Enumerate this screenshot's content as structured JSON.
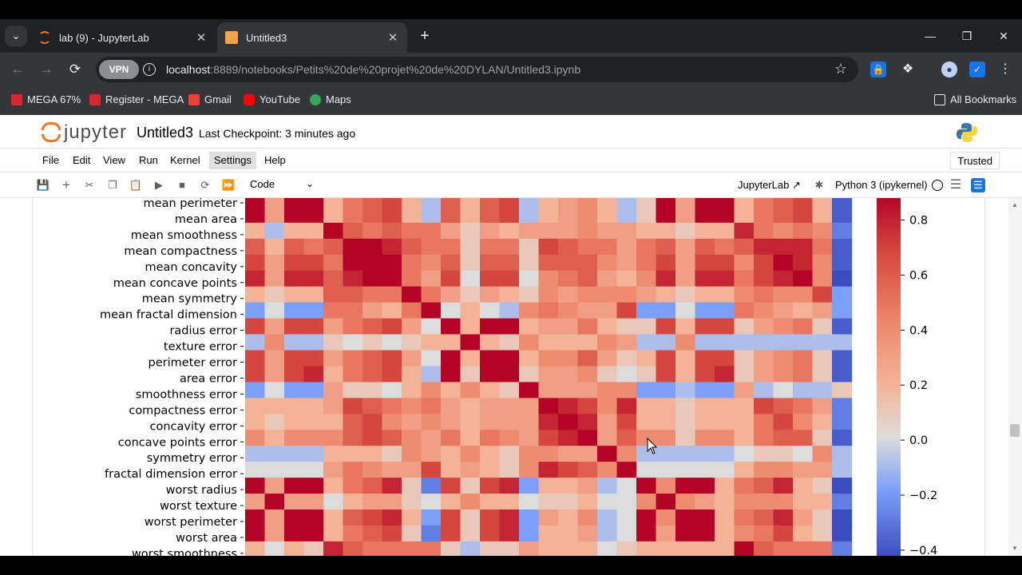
{
  "browser": {
    "tabs": [
      {
        "title": "lab (9) - JupyterLab",
        "active": false
      },
      {
        "title": "Untitled3",
        "active": true
      }
    ],
    "url_host": "localhost",
    "url_rest": ":8889/notebooks/Petits%20de%20projet%20de%20DYLAN/Untitled3.ipynb",
    "vpn_label": "VPN",
    "bookmarks": [
      "MEGA 67%",
      "Register - MEGA",
      "Gmail",
      "YouTube",
      "Maps"
    ],
    "all_bookmarks": "All Bookmarks"
  },
  "jupyter": {
    "logo_text": "jupyter",
    "notebook_name": "Untitled3",
    "checkpoint": "Last Checkpoint: 3 minutes ago",
    "menu": [
      "File",
      "Edit",
      "View",
      "Run",
      "Kernel",
      "Settings",
      "Help"
    ],
    "highlighted_menu": "Settings",
    "trusted": "Trusted",
    "cell_type": "Code",
    "jupyterlab_link": "JupyterLab",
    "kernel": "Python 3 (ipykernel)"
  },
  "chart_data": {
    "type": "heatmap",
    "rows": [
      "mean perimeter",
      "mean area",
      "mean smoothness",
      "mean compactness",
      "mean concavity",
      "mean concave points",
      "mean symmetry",
      "mean fractal dimension",
      "radius error",
      "texture error",
      "perimeter error",
      "area error",
      "smoothness error",
      "compactness error",
      "concavity error",
      "concave points error",
      "symmetry error",
      "fractal dimension error",
      "worst radius",
      "worst texture",
      "worst perimeter",
      "worst area",
      "worst smoothness"
    ],
    "n_columns": 31,
    "colorscale": "coolwarm",
    "clim": [
      -0.45,
      0.9
    ],
    "colorbar_ticks": [
      "0.8",
      "0.6",
      "0.4",
      "0.2",
      "0.0",
      "−0.2",
      "−0.4"
    ],
    "colorbar_values": [
      0.8,
      0.6,
      0.4,
      0.2,
      0.0,
      -0.2,
      -0.4
    ],
    "matrix": [
      [
        0.9,
        0.3,
        0.9,
        0.9,
        0.2,
        0.5,
        0.6,
        0.7,
        0.2,
        -0.1,
        0.6,
        0.2,
        0.6,
        0.7,
        -0.1,
        0.2,
        0.3,
        0.4,
        0.2,
        -0.1,
        0.1,
        0.9,
        0.3,
        0.9,
        0.9,
        0.2,
        0.5,
        0.6,
        0.7,
        0.2,
        -0.4
      ],
      [
        0.9,
        0.3,
        0.9,
        0.9,
        0.2,
        0.5,
        0.6,
        0.7,
        0.2,
        -0.1,
        0.6,
        0.2,
        0.6,
        0.7,
        -0.1,
        0.2,
        0.3,
        0.4,
        0.2,
        -0.1,
        0.1,
        0.9,
        0.3,
        0.9,
        0.9,
        0.2,
        0.5,
        0.6,
        0.7,
        0.2,
        -0.4
      ],
      [
        0.2,
        -0.1,
        0.2,
        0.2,
        0.9,
        0.6,
        0.5,
        0.6,
        0.5,
        0.5,
        0.3,
        0.1,
        0.3,
        0.2,
        0.3,
        0.3,
        0.3,
        0.4,
        0.3,
        0.3,
        0.2,
        0.2,
        0.1,
        0.2,
        0.2,
        0.8,
        0.5,
        0.4,
        0.5,
        0.4,
        -0.3
      ],
      [
        0.6,
        0.2,
        0.6,
        0.5,
        0.6,
        0.9,
        0.9,
        0.8,
        0.6,
        0.5,
        0.5,
        0.1,
        0.5,
        0.5,
        0.1,
        0.7,
        0.6,
        0.5,
        0.5,
        0.3,
        0.5,
        0.6,
        0.3,
        0.6,
        0.5,
        0.6,
        0.8,
        0.8,
        0.8,
        0.5,
        -0.4
      ],
      [
        0.7,
        0.3,
        0.7,
        0.7,
        0.5,
        0.9,
        0.9,
        0.9,
        0.5,
        0.4,
        0.6,
        0.1,
        0.6,
        0.6,
        0.1,
        0.6,
        0.6,
        0.6,
        0.4,
        0.3,
        0.5,
        0.7,
        0.3,
        0.7,
        0.7,
        0.4,
        0.7,
        0.9,
        0.8,
        0.4,
        -0.4
      ],
      [
        0.8,
        0.3,
        0.8,
        0.8,
        0.6,
        0.8,
        0.9,
        0.9,
        0.5,
        0.3,
        0.7,
        0.0,
        0.7,
        0.7,
        0.0,
        0.4,
        0.5,
        0.6,
        0.3,
        0.2,
        0.4,
        0.8,
        0.3,
        0.8,
        0.8,
        0.5,
        0.7,
        0.8,
        0.9,
        0.4,
        -0.5
      ],
      [
        0.2,
        0.1,
        0.2,
        0.2,
        0.6,
        0.6,
        0.5,
        0.5,
        0.9,
        0.5,
        0.3,
        0.1,
        0.3,
        0.2,
        0.1,
        0.4,
        0.3,
        0.4,
        0.4,
        0.4,
        0.3,
        0.2,
        0.1,
        0.2,
        0.2,
        0.4,
        0.5,
        0.4,
        0.4,
        0.7,
        -0.2
      ],
      [
        -0.2,
        0.0,
        -0.2,
        -0.2,
        0.5,
        0.5,
        0.3,
        0.2,
        0.5,
        0.9,
        0.0,
        0.2,
        0.0,
        -0.1,
        0.4,
        0.5,
        0.4,
        0.3,
        0.3,
        0.7,
        -0.2,
        -0.2,
        0.0,
        -0.2,
        -0.2,
        0.5,
        0.4,
        0.3,
        0.2,
        0.3,
        -0.2
      ],
      [
        0.7,
        0.3,
        0.7,
        0.7,
        0.3,
        0.5,
        0.6,
        0.7,
        0.3,
        0.0,
        0.9,
        0.2,
        0.9,
        0.9,
        0.2,
        0.3,
        0.3,
        0.5,
        0.2,
        0.1,
        0.1,
        0.7,
        0.2,
        0.7,
        0.7,
        0.1,
        0.3,
        0.4,
        0.5,
        0.1,
        -0.4
      ],
      [
        -0.1,
        0.4,
        -0.1,
        -0.1,
        0.1,
        0.0,
        0.1,
        0.0,
        0.1,
        0.2,
        0.2,
        0.9,
        0.2,
        0.1,
        0.4,
        0.2,
        0.2,
        0.2,
        0.4,
        0.3,
        -0.1,
        -0.1,
        0.4,
        -0.1,
        -0.1,
        -0.1,
        -0.1,
        -0.1,
        -0.1,
        -0.1,
        -0.1
      ],
      [
        0.7,
        0.3,
        0.7,
        0.7,
        0.3,
        0.5,
        0.6,
        0.7,
        0.3,
        0.0,
        0.9,
        0.2,
        0.9,
        0.9,
        0.2,
        0.4,
        0.4,
        0.6,
        0.3,
        0.1,
        0.2,
        0.7,
        0.2,
        0.7,
        0.7,
        0.1,
        0.3,
        0.4,
        0.5,
        0.1,
        -0.4
      ],
      [
        0.7,
        0.3,
        0.7,
        0.8,
        0.2,
        0.5,
        0.6,
        0.7,
        0.2,
        -0.1,
        0.9,
        0.1,
        0.9,
        0.9,
        0.1,
        0.3,
        0.3,
        0.4,
        0.1,
        0.0,
        0.1,
        0.7,
        0.2,
        0.7,
        0.8,
        0.1,
        0.3,
        0.4,
        0.5,
        0.1,
        -0.4
      ],
      [
        -0.2,
        0.0,
        -0.2,
        -0.2,
        0.3,
        0.1,
        0.1,
        0.0,
        0.2,
        0.4,
        0.2,
        0.4,
        0.2,
        0.1,
        0.9,
        0.3,
        0.3,
        0.3,
        0.4,
        0.4,
        -0.2,
        -0.2,
        -0.1,
        -0.2,
        -0.2,
        0.3,
        -0.1,
        0.0,
        -0.1,
        -0.1,
        0.1
      ],
      [
        0.2,
        0.2,
        0.2,
        0.2,
        0.3,
        0.7,
        0.6,
        0.5,
        0.4,
        0.5,
        0.3,
        0.2,
        0.3,
        0.3,
        0.3,
        0.9,
        0.8,
        0.7,
        0.4,
        0.8,
        0.2,
        0.2,
        0.1,
        0.2,
        0.2,
        0.2,
        0.7,
        0.6,
        0.5,
        0.3,
        -0.3
      ],
      [
        0.2,
        0.1,
        0.2,
        0.2,
        0.2,
        0.6,
        0.7,
        0.4,
        0.3,
        0.4,
        0.3,
        0.2,
        0.3,
        0.3,
        0.3,
        0.8,
        0.9,
        0.8,
        0.3,
        0.7,
        0.2,
        0.2,
        0.1,
        0.2,
        0.2,
        0.2,
        0.5,
        0.7,
        0.4,
        0.2,
        -0.3
      ],
      [
        0.4,
        0.2,
        0.4,
        0.4,
        0.4,
        0.6,
        0.7,
        0.6,
        0.4,
        0.3,
        0.5,
        0.2,
        0.5,
        0.4,
        0.3,
        0.7,
        0.8,
        0.9,
        0.3,
        0.6,
        0.4,
        0.4,
        0.1,
        0.4,
        0.4,
        0.2,
        0.5,
        0.6,
        0.6,
        0.1,
        -0.4
      ],
      [
        -0.1,
        -0.1,
        -0.1,
        -0.1,
        0.2,
        0.2,
        0.2,
        0.1,
        0.4,
        0.3,
        0.2,
        0.4,
        0.2,
        0.1,
        0.4,
        0.4,
        0.3,
        0.3,
        0.9,
        0.4,
        -0.1,
        -0.1,
        -0.1,
        -0.1,
        -0.1,
        0.0,
        0.1,
        0.1,
        0.0,
        0.4,
        -0.1
      ],
      [
        0.0,
        0.0,
        0.0,
        0.0,
        0.3,
        0.5,
        0.4,
        0.3,
        0.3,
        0.7,
        0.2,
        0.3,
        0.2,
        0.1,
        0.4,
        0.8,
        0.7,
        0.6,
        0.4,
        0.9,
        0.0,
        0.0,
        0.0,
        0.0,
        0.0,
        0.2,
        0.4,
        0.4,
        0.3,
        0.3,
        -0.1
      ],
      [
        0.9,
        0.3,
        0.9,
        0.9,
        0.2,
        0.5,
        0.6,
        0.8,
        0.1,
        -0.3,
        0.7,
        0.1,
        0.7,
        0.8,
        -0.2,
        0.2,
        0.2,
        0.3,
        -0.1,
        0.0,
        0.9,
        0.4,
        0.9,
        0.9,
        0.2,
        0.5,
        0.6,
        0.8,
        0.2,
        0.1,
        -0.5
      ],
      [
        0.3,
        0.9,
        0.3,
        0.3,
        0.0,
        0.2,
        0.3,
        0.3,
        0.1,
        0.0,
        0.2,
        0.4,
        0.2,
        0.2,
        0.0,
        0.1,
        0.1,
        0.2,
        0.0,
        0.0,
        0.4,
        0.9,
        0.4,
        0.3,
        0.2,
        0.4,
        0.4,
        0.4,
        0.2,
        0.2,
        -0.3
      ],
      [
        0.9,
        0.3,
        0.9,
        0.9,
        0.2,
        0.6,
        0.7,
        0.8,
        0.2,
        -0.2,
        0.7,
        0.1,
        0.7,
        0.8,
        -0.2,
        0.3,
        0.2,
        0.4,
        -0.1,
        0.0,
        0.9,
        0.4,
        0.9,
        0.9,
        0.2,
        0.5,
        0.6,
        0.8,
        0.3,
        0.1,
        -0.5
      ],
      [
        0.9,
        0.3,
        0.9,
        0.9,
        0.2,
        0.5,
        0.6,
        0.7,
        0.1,
        -0.3,
        0.7,
        0.1,
        0.7,
        0.8,
        -0.2,
        0.2,
        0.2,
        0.3,
        -0.1,
        0.0,
        0.9,
        0.3,
        0.9,
        0.9,
        0.2,
        0.4,
        0.5,
        0.7,
        0.2,
        0.1,
        -0.5
      ],
      [
        0.2,
        0.0,
        0.2,
        0.1,
        0.8,
        0.6,
        0.5,
        0.5,
        0.5,
        0.5,
        0.1,
        -0.1,
        0.1,
        0.1,
        0.3,
        0.2,
        0.2,
        0.2,
        0.0,
        0.1,
        0.2,
        0.2,
        0.2,
        0.2,
        0.2,
        0.9,
        0.6,
        0.5,
        0.5,
        0.5,
        -0.3
      ]
    ]
  }
}
